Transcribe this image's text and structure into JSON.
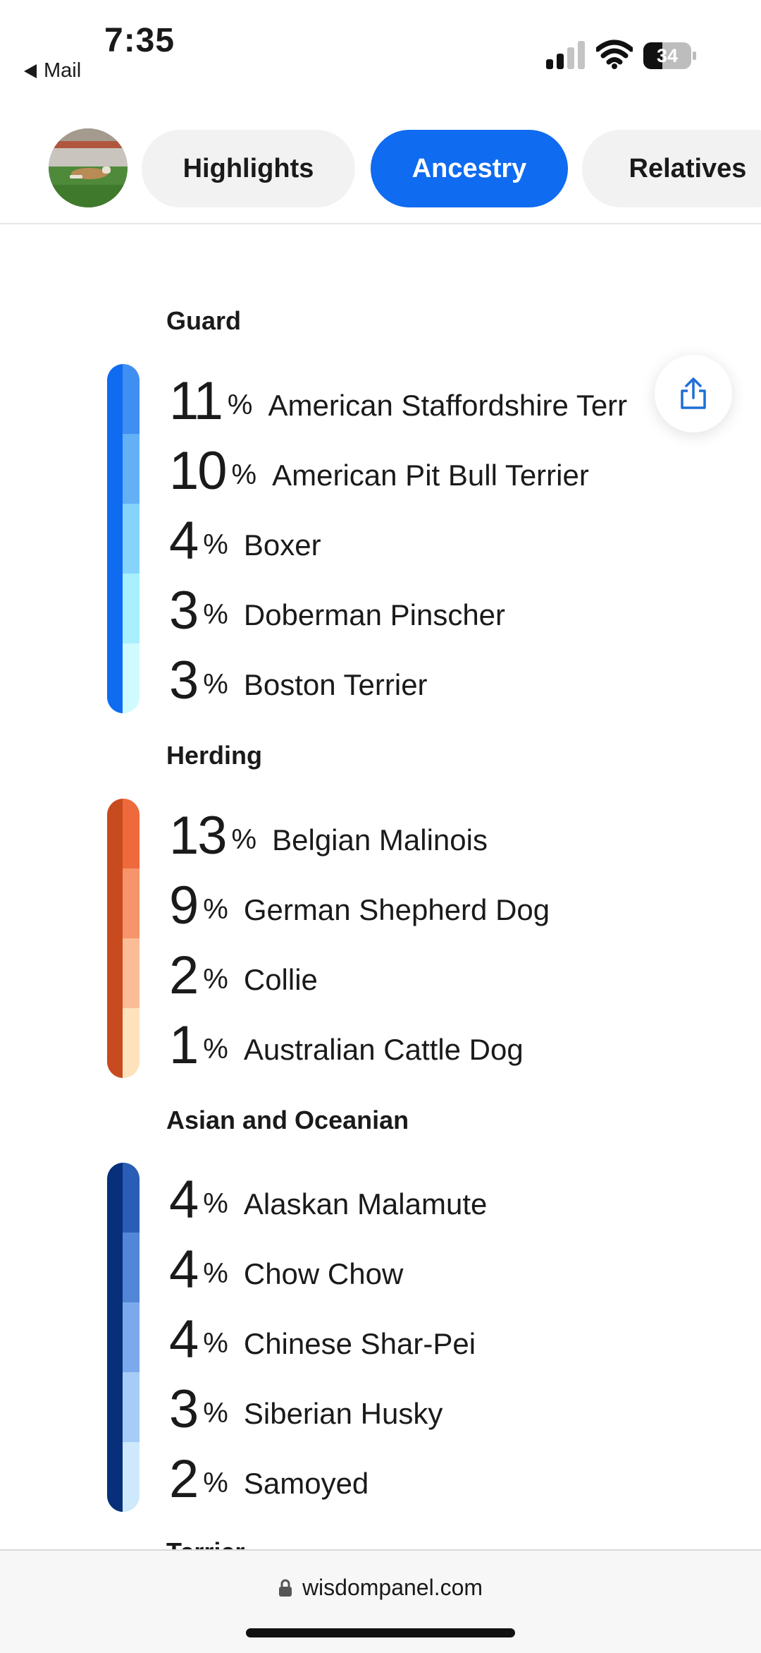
{
  "status": {
    "time": "7:35",
    "back_label": "Mail",
    "battery": "34"
  },
  "tabs": [
    {
      "label": "Highlights",
      "active": false
    },
    {
      "label": "Ancestry",
      "active": true
    },
    {
      "label": "Relatives",
      "active": false
    }
  ],
  "groups": [
    {
      "title": "Guard",
      "color": "#0f6bf0",
      "breeds": [
        {
          "pct": "11",
          "unit": "%",
          "name": "American Staffordshire Terr",
          "color": "#3f8ff2"
        },
        {
          "pct": "10",
          "unit": "%",
          "name": "American Pit Bull Terrier",
          "color": "#64b0f7"
        },
        {
          "pct": "4",
          "unit": "%",
          "name": "Boxer",
          "color": "#86d4fb"
        },
        {
          "pct": "3",
          "unit": "%",
          "name": "Doberman Pinscher",
          "color": "#a9f0fd"
        },
        {
          "pct": "3",
          "unit": "%",
          "name": "Boston Terrier",
          "color": "#cffbff"
        }
      ]
    },
    {
      "title": "Herding",
      "color": "#c84a1f",
      "breeds": [
        {
          "pct": "13",
          "unit": "%",
          "name": "Belgian Malinois",
          "color": "#ee6a3c"
        },
        {
          "pct": "9",
          "unit": "%",
          "name": "German Shepherd Dog",
          "color": "#f6946c"
        },
        {
          "pct": "2",
          "unit": "%",
          "name": "Collie",
          "color": "#fbbd98"
        },
        {
          "pct": "1",
          "unit": "%",
          "name": "Australian Cattle Dog",
          "color": "#fee2bb"
        }
      ]
    },
    {
      "title": "Asian and Oceanian",
      "color": "#072f7a",
      "breeds": [
        {
          "pct": "4",
          "unit": "%",
          "name": "Alaskan Malamute",
          "color": "#2a5db5"
        },
        {
          "pct": "4",
          "unit": "%",
          "name": "Chow Chow",
          "color": "#5286d6"
        },
        {
          "pct": "4",
          "unit": "%",
          "name": "Chinese Shar-Pei",
          "color": "#7ba9ec"
        },
        {
          "pct": "3",
          "unit": "%",
          "name": "Siberian Husky",
          "color": "#a6cdf7"
        },
        {
          "pct": "2",
          "unit": "%",
          "name": "Samoyed",
          "color": "#cfe9fc"
        }
      ]
    }
  ],
  "next_group_title": "Terrier",
  "url_bar": {
    "url": "wisdompanel.com"
  }
}
